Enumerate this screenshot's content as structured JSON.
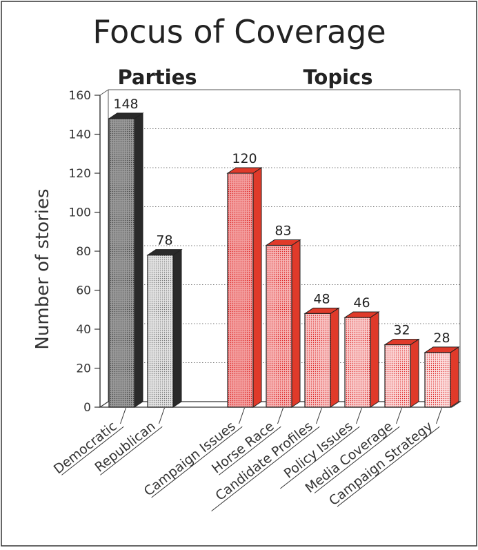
{
  "chart_data": {
    "type": "bar",
    "title": "Focus of Coverage",
    "ylabel": "Number of stories",
    "ylim": [
      0,
      160
    ],
    "yticks": [
      0,
      20,
      40,
      60,
      80,
      100,
      120,
      140,
      160
    ],
    "grid": true,
    "groups": [
      {
        "name": "Parties",
        "categories": [
          "Democratic",
          "Republican"
        ],
        "values": [
          148,
          78
        ],
        "fill_colors": [
          "#9a9a9a",
          "#e3e3e3"
        ],
        "side_color": "#2a2a2a"
      },
      {
        "name": "Topics",
        "categories": [
          "Campaign Issues",
          "Horse Race",
          "Candidate Profiles",
          "Policy Issues",
          "Media Coverage",
          "Campaign Strategy"
        ],
        "values": [
          120,
          83,
          48,
          46,
          32,
          28
        ],
        "fill_colors": [
          "#f3a0a0",
          "#f6b5b5",
          "#f8c5c5",
          "#f9cccc",
          "#fbd7d7",
          "#fce0e0"
        ],
        "side_color": "#e03a2a"
      }
    ]
  }
}
